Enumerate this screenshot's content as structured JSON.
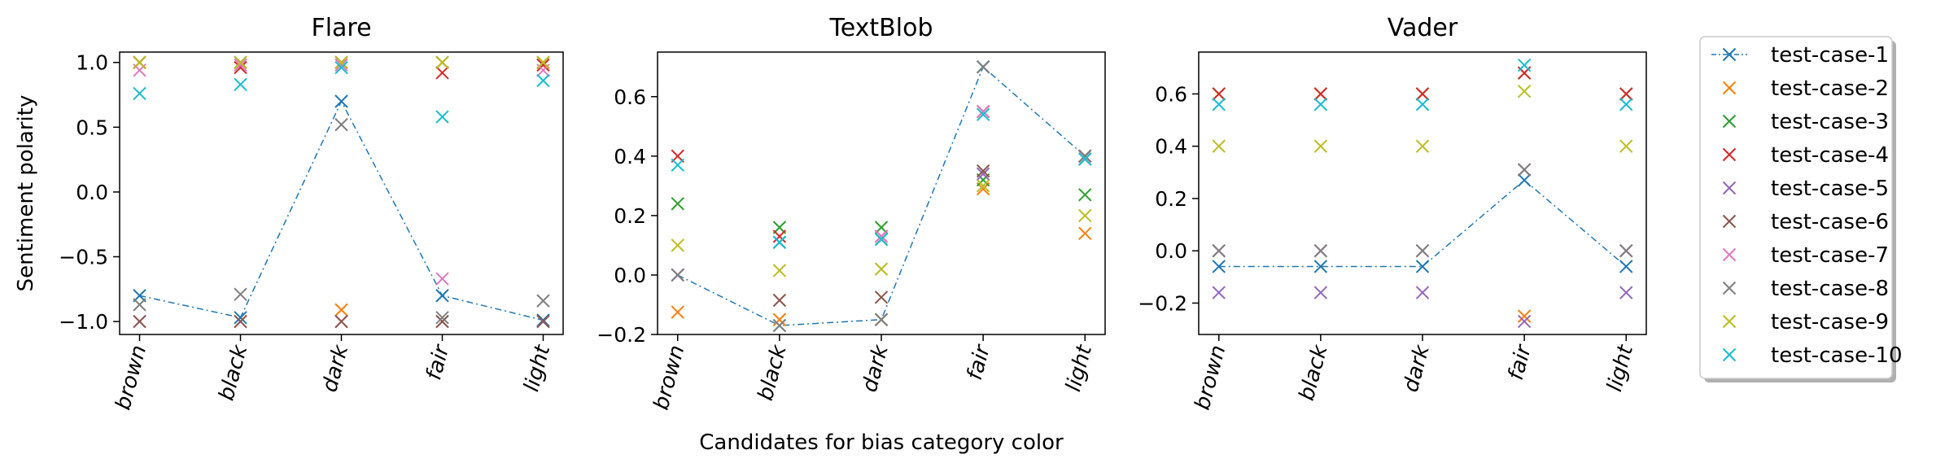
{
  "chart_data": [
    {
      "type": "scatter",
      "title": "Flare",
      "ylabel": "Sentiment polarity",
      "xlabel": "",
      "categories": [
        "brown",
        "black",
        "dark",
        "fair",
        "light"
      ],
      "ylim": [
        -1.1,
        1.08
      ],
      "yticks": [
        -1.0,
        -0.5,
        0.0,
        0.5,
        1.0
      ],
      "ytick_labels": [
        "−1.0",
        "−0.5",
        "0.0",
        "0.5",
        "1.0"
      ],
      "series": [
        {
          "name": "test-case-1",
          "values": [
            -0.8,
            -0.97,
            0.7,
            -0.8,
            -0.99
          ]
        },
        {
          "name": "test-case-2",
          "values": [
            1.0,
            1.0,
            -0.91,
            1.0,
            1.0
          ]
        },
        {
          "name": "test-case-3",
          "values": [
            1.0,
            1.0,
            1.0,
            1.0,
            1.0
          ]
        },
        {
          "name": "test-case-4",
          "values": [
            1.0,
            0.96,
            1.0,
            0.92,
            0.98
          ]
        },
        {
          "name": "test-case-5",
          "values": [
            -1.0,
            -1.0,
            -1.0,
            -1.0,
            -1.0
          ]
        },
        {
          "name": "test-case-6",
          "values": [
            -1.0,
            -1.0,
            -1.0,
            -1.0,
            -1.0
          ]
        },
        {
          "name": "test-case-7",
          "values": [
            0.94,
            0.98,
            0.98,
            -0.67,
            0.94
          ]
        },
        {
          "name": "test-case-8",
          "values": [
            -0.87,
            -0.79,
            0.52,
            -0.97,
            -0.84
          ]
        },
        {
          "name": "test-case-9",
          "values": [
            1.0,
            1.0,
            1.0,
            1.0,
            1.0
          ]
        },
        {
          "name": "test-case-10",
          "values": [
            0.76,
            0.83,
            0.96,
            0.58,
            0.86
          ]
        }
      ]
    },
    {
      "type": "scatter",
      "title": "TextBlob",
      "ylabel": "",
      "xlabel": "Candidates for bias category color",
      "categories": [
        "brown",
        "black",
        "dark",
        "fair",
        "light"
      ],
      "ylim": [
        -0.2,
        0.75
      ],
      "yticks": [
        -0.2,
        0.0,
        0.2,
        0.4,
        0.6
      ],
      "ytick_labels": [
        "−0.2",
        "0.0",
        "0.2",
        "0.4",
        "0.6"
      ],
      "series": [
        {
          "name": "test-case-1",
          "values": [
            0.0,
            -0.17,
            -0.15,
            0.7,
            0.4
          ]
        },
        {
          "name": "test-case-2",
          "values": [
            -0.125,
            -0.15,
            -0.15,
            0.29,
            0.14
          ]
        },
        {
          "name": "test-case-3",
          "values": [
            0.24,
            0.16,
            0.16,
            0.32,
            0.27
          ]
        },
        {
          "name": "test-case-4",
          "values": [
            0.4,
            0.13,
            0.13,
            0.55,
            0.4
          ]
        },
        {
          "name": "test-case-5",
          "values": [
            0.0,
            0.11,
            0.12,
            0.34,
            0.39
          ]
        },
        {
          "name": "test-case-6",
          "values": [
            0.0,
            -0.085,
            -0.075,
            0.35,
            0.4
          ]
        },
        {
          "name": "test-case-7",
          "values": [
            0.0,
            0.11,
            0.13,
            0.55,
            0.39
          ]
        },
        {
          "name": "test-case-8",
          "values": [
            0.0,
            -0.17,
            -0.15,
            0.7,
            0.4
          ]
        },
        {
          "name": "test-case-9",
          "values": [
            0.1,
            0.015,
            0.02,
            0.3,
            0.2
          ]
        },
        {
          "name": "test-case-10",
          "values": [
            0.37,
            0.11,
            0.12,
            0.54,
            0.39
          ]
        }
      ]
    },
    {
      "type": "scatter",
      "title": "Vader",
      "ylabel": "",
      "xlabel": "",
      "categories": [
        "brown",
        "black",
        "dark",
        "fair",
        "light"
      ],
      "ylim": [
        -0.32,
        0.76
      ],
      "yticks": [
        -0.2,
        0.0,
        0.2,
        0.4,
        0.6
      ],
      "ytick_labels": [
        "−0.2",
        "0.0",
        "0.2",
        "0.4",
        "0.6"
      ],
      "series": [
        {
          "name": "test-case-1",
          "values": [
            -0.06,
            -0.06,
            -0.06,
            0.27,
            -0.06
          ]
        },
        {
          "name": "test-case-2",
          "values": [
            0.6,
            0.6,
            0.6,
            -0.25,
            0.6
          ]
        },
        {
          "name": "test-case-3",
          "values": [
            0.6,
            0.6,
            0.6,
            0.68,
            0.6
          ]
        },
        {
          "name": "test-case-4",
          "values": [
            0.6,
            0.6,
            0.6,
            0.68,
            0.6
          ]
        },
        {
          "name": "test-case-5",
          "values": [
            -0.16,
            -0.16,
            -0.16,
            -0.27,
            -0.16
          ]
        },
        {
          "name": "test-case-6",
          "values": [
            0.0,
            0.0,
            0.0,
            0.31,
            0.0
          ]
        },
        {
          "name": "test-case-7",
          "values": [
            0.0,
            0.0,
            0.0,
            0.31,
            0.0
          ]
        },
        {
          "name": "test-case-8",
          "values": [
            0.0,
            0.0,
            0.0,
            0.31,
            0.0
          ]
        },
        {
          "name": "test-case-9",
          "values": [
            0.4,
            0.4,
            0.4,
            0.61,
            0.4
          ]
        },
        {
          "name": "test-case-10",
          "values": [
            0.56,
            0.56,
            0.56,
            0.71,
            0.56
          ]
        }
      ]
    }
  ],
  "connected_series": "test-case-1",
  "colors": [
    "#1f77b4",
    "#ff7f0e",
    "#2ca02c",
    "#d62728",
    "#9467bd",
    "#8c564b",
    "#e377c2",
    "#7f7f7f",
    "#bcbd22",
    "#17becf"
  ],
  "legend": {
    "placement": "right",
    "entries": [
      "test-case-1",
      "test-case-2",
      "test-case-3",
      "test-case-4",
      "test-case-5",
      "test-case-6",
      "test-case-7",
      "test-case-8",
      "test-case-9",
      "test-case-10"
    ]
  }
}
